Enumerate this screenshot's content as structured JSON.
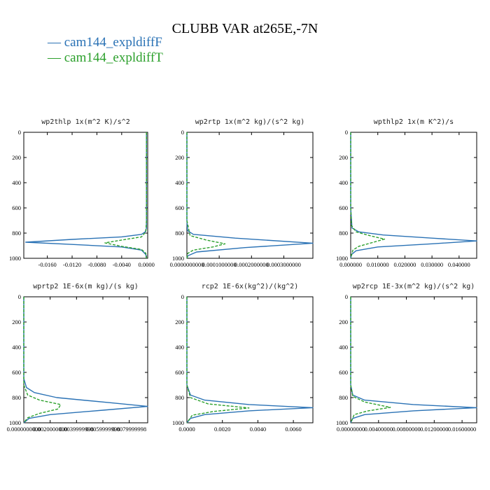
{
  "title": "CLUBB VAR at265E,-7N",
  "legend": [
    {
      "label": "— cam144_expldiffF",
      "color": "#2a72b5"
    },
    {
      "label": "— cam144_expldiffT",
      "color": "#2ca02c"
    }
  ],
  "chart_data": [
    {
      "type": "line",
      "title": "wp2thlp  1x(m^2 K)/s^2",
      "y_inverted": true,
      "ylim": [
        0,
        1000
      ],
      "yticks": [
        "0",
        "200",
        "400",
        "600",
        "800",
        "1000"
      ],
      "ytick_values": [
        0,
        200,
        400,
        600,
        800,
        1000
      ],
      "xlim": [
        -0.0198,
        0.0002
      ],
      "xticks": [
        "-0.0160",
        "-0.0120",
        "-0.0080",
        "-0.0040",
        "0.0000"
      ],
      "xtick_values": [
        -0.016,
        -0.012,
        -0.008,
        -0.004,
        0.0
      ],
      "series": [
        {
          "name": "cam144_expldiffF",
          "color": "#2a72b5",
          "dash": "solid",
          "points": [
            [
              0.0,
              0
            ],
            [
              0.0,
              600
            ],
            [
              0.0,
              760
            ],
            [
              -0.0002,
              790
            ],
            [
              -0.0008,
              810
            ],
            [
              -0.004,
              830
            ],
            [
              -0.012,
              850
            ],
            [
              -0.0195,
              872
            ],
            [
              -0.012,
              890
            ],
            [
              -0.004,
              910
            ],
            [
              -0.0008,
              935
            ],
            [
              -0.0001,
              970
            ],
            [
              0.0,
              1000
            ]
          ]
        },
        {
          "name": "cam144_expldiffT",
          "color": "#2ca02c",
          "dash": "dashed",
          "points": [
            [
              0.0,
              0
            ],
            [
              0.0,
              700
            ],
            [
              -0.0001,
              790
            ],
            [
              -0.0008,
              830
            ],
            [
              -0.004,
              855
            ],
            [
              -0.0067,
              878
            ],
            [
              -0.004,
              905
            ],
            [
              -0.0008,
              930
            ],
            [
              -0.0001,
              960
            ],
            [
              0.0,
              1000
            ]
          ]
        }
      ]
    },
    {
      "type": "line",
      "title": "wp2rtp  1x(m^2 kg)/(s^2 kg)",
      "y_inverted": true,
      "ylim": [
        0,
        1000
      ],
      "yticks": [
        "0",
        "200",
        "400",
        "600",
        "800",
        "1000"
      ],
      "ytick_values": [
        0,
        200,
        400,
        600,
        800,
        1000
      ],
      "xlim": [
        0,
        0.00039
      ],
      "xticks": [
        "0.0000000000",
        "0.0001000000",
        "0.0002000000",
        "0.0003000000"
      ],
      "xtick_values": [
        0,
        0.0001,
        0.0002,
        0.0003
      ],
      "series": [
        {
          "name": "cam144_expldiffF",
          "color": "#2a72b5",
          "dash": "solid",
          "points": [
            [
              0,
              0
            ],
            [
              0,
              700
            ],
            [
              2e-06,
              780
            ],
            [
              2e-05,
              810
            ],
            [
              0.00015,
              840
            ],
            [
              0.00039,
              880
            ],
            [
              0.00018,
              915
            ],
            [
              3e-05,
              950
            ],
            [
              3e-06,
              980
            ],
            [
              0,
              1000
            ]
          ]
        },
        {
          "name": "cam144_expldiffT",
          "color": "#2ca02c",
          "dash": "dashed",
          "points": [
            [
              0,
              0
            ],
            [
              0,
              700
            ],
            [
              1e-05,
              820
            ],
            [
              6e-05,
              855
            ],
            [
              0.000118,
              885
            ],
            [
              8e-05,
              910
            ],
            [
              2e-05,
              935
            ],
            [
              3e-06,
              960
            ],
            [
              0,
              1000
            ]
          ]
        }
      ]
    },
    {
      "type": "line",
      "title": "wpthlp2  1x(m K^2)/s",
      "y_inverted": true,
      "ylim": [
        0,
        1000
      ],
      "yticks": [
        "0",
        "200",
        "400",
        "600",
        "800",
        "1000"
      ],
      "ytick_values": [
        0,
        200,
        400,
        600,
        800,
        1000
      ],
      "xlim": [
        0,
        0.0465
      ],
      "xticks": [
        "0.000000",
        "0.010000",
        "0.020000",
        "0.030000",
        "0.040000"
      ],
      "xtick_values": [
        0,
        0.01,
        0.02,
        0.03,
        0.04
      ],
      "series": [
        {
          "name": "cam144_expldiffF",
          "color": "#2a72b5",
          "dash": "solid",
          "points": [
            [
              0,
              0
            ],
            [
              0,
              600
            ],
            [
              0.0005,
              760
            ],
            [
              0.003,
              790
            ],
            [
              0.012,
              815
            ],
            [
              0.03,
              840
            ],
            [
              0.0465,
              862
            ],
            [
              0.03,
              885
            ],
            [
              0.01,
              910
            ],
            [
              0.002,
              940
            ],
            [
              0.0003,
              970
            ],
            [
              0,
              1000
            ]
          ]
        },
        {
          "name": "cam144_expldiffT",
          "color": "#2ca02c",
          "dash": "dashed",
          "points": [
            [
              0,
              0
            ],
            [
              0,
              600
            ],
            [
              0.0003,
              740
            ],
            [
              0.002,
              790
            ],
            [
              0.007,
              820
            ],
            [
              0.0125,
              848
            ],
            [
              0.008,
              875
            ],
            [
              0.003,
              905
            ],
            [
              0.0008,
              935
            ],
            [
              0,
              1000
            ]
          ]
        }
      ]
    },
    {
      "type": "line",
      "title": "wprtp2  1E-6x(m kg)/(s kg)",
      "y_inverted": true,
      "ylim": [
        0,
        1000
      ],
      "yticks": [
        "0",
        "200",
        "400",
        "600",
        "800",
        "1000"
      ],
      "ytick_values": [
        0,
        200,
        400,
        600,
        800,
        1000
      ],
      "xlim": [
        0,
        0.0094
      ],
      "xticks": [
        "0.0000000000",
        "0.0020000000",
        "0.0039999998",
        "0.0059999998",
        "0.0079999998"
      ],
      "xtick_values": [
        0,
        0.002,
        0.004,
        0.006,
        0.008
      ],
      "series": [
        {
          "name": "cam144_expldiffF",
          "color": "#2a72b5",
          "dash": "solid",
          "points": [
            [
              0,
              0
            ],
            [
              0,
              650
            ],
            [
              0.0002,
              720
            ],
            [
              0.0008,
              760
            ],
            [
              0.0025,
              800
            ],
            [
              0.0065,
              840
            ],
            [
              0.0094,
              870
            ],
            [
              0.006,
              900
            ],
            [
              0.002,
              935
            ],
            [
              0.0004,
              965
            ],
            [
              0,
              1000
            ]
          ]
        },
        {
          "name": "cam144_expldiffT",
          "color": "#2ca02c",
          "dash": "dashed",
          "points": [
            [
              0,
              0
            ],
            [
              0,
              700
            ],
            [
              0.0003,
              780
            ],
            [
              0.0012,
              820
            ],
            [
              0.0028,
              855
            ],
            [
              0.0026,
              890
            ],
            [
              0.0012,
              925
            ],
            [
              0.0003,
              960
            ],
            [
              0,
              1000
            ]
          ]
        }
      ]
    },
    {
      "type": "line",
      "title": "rcp2  1E-6x(kg^2)/(kg^2)",
      "y_inverted": true,
      "ylim": [
        0,
        1000
      ],
      "yticks": [
        "0",
        "200",
        "400",
        "600",
        "800",
        "1000"
      ],
      "ytick_values": [
        0,
        200,
        400,
        600,
        800,
        1000
      ],
      "xlim": [
        0,
        0.0071
      ],
      "xticks": [
        "0.0000",
        "0.0020",
        "0.0040",
        "0.0060"
      ],
      "xtick_values": [
        0,
        0.002,
        0.004,
        0.006
      ],
      "series": [
        {
          "name": "cam144_expldiffF",
          "color": "#2a72b5",
          "dash": "solid",
          "points": [
            [
              0,
              0
            ],
            [
              0,
              700
            ],
            [
              0.0002,
              780
            ],
            [
              0.001,
              820
            ],
            [
              0.0035,
              855
            ],
            [
              0.0071,
              880
            ],
            [
              0.0035,
              905
            ],
            [
              0.001,
              935
            ],
            [
              0.0002,
              965
            ],
            [
              0,
              1000
            ]
          ]
        },
        {
          "name": "cam144_expldiffT",
          "color": "#2ca02c",
          "dash": "dashed",
          "points": [
            [
              0,
              0
            ],
            [
              0,
              700
            ],
            [
              0.0002,
              800
            ],
            [
              0.0012,
              850
            ],
            [
              0.0035,
              882
            ],
            [
              0.0015,
              910
            ],
            [
              0.0003,
              940
            ],
            [
              0,
              1000
            ]
          ]
        }
      ]
    },
    {
      "type": "line",
      "title": "wp2rcp  1E-3x(m^2 kg)/(s^2 kg)",
      "y_inverted": true,
      "ylim": [
        0,
        1000
      ],
      "yticks": [
        "0",
        "200",
        "400",
        "600",
        "800",
        "1000"
      ],
      "ytick_values": [
        0,
        200,
        400,
        600,
        800,
        1000
      ],
      "xlim": [
        0,
        0.0181
      ],
      "xticks": [
        "0.00000000",
        "0.00400000",
        "0.00800000",
        "0.01200000",
        "0.01600000"
      ],
      "xtick_values": [
        0,
        0.004,
        0.008,
        0.012,
        0.016
      ],
      "series": [
        {
          "name": "cam144_expldiffF",
          "color": "#2a72b5",
          "dash": "solid",
          "points": [
            [
              0,
              0
            ],
            [
              0,
              700
            ],
            [
              0.0003,
              780
            ],
            [
              0.002,
              820
            ],
            [
              0.009,
              855
            ],
            [
              0.0181,
              880
            ],
            [
              0.009,
              905
            ],
            [
              0.002,
              935
            ],
            [
              0.0003,
              965
            ],
            [
              0,
              1000
            ]
          ]
        },
        {
          "name": "cam144_expldiffT",
          "color": "#2ca02c",
          "dash": "dashed",
          "points": [
            [
              0,
              0
            ],
            [
              0,
              700
            ],
            [
              0.0003,
              790
            ],
            [
              0.002,
              835
            ],
            [
              0.0057,
              878
            ],
            [
              0.0025,
              905
            ],
            [
              0.0005,
              935
            ],
            [
              0,
              1000
            ]
          ]
        }
      ]
    }
  ]
}
